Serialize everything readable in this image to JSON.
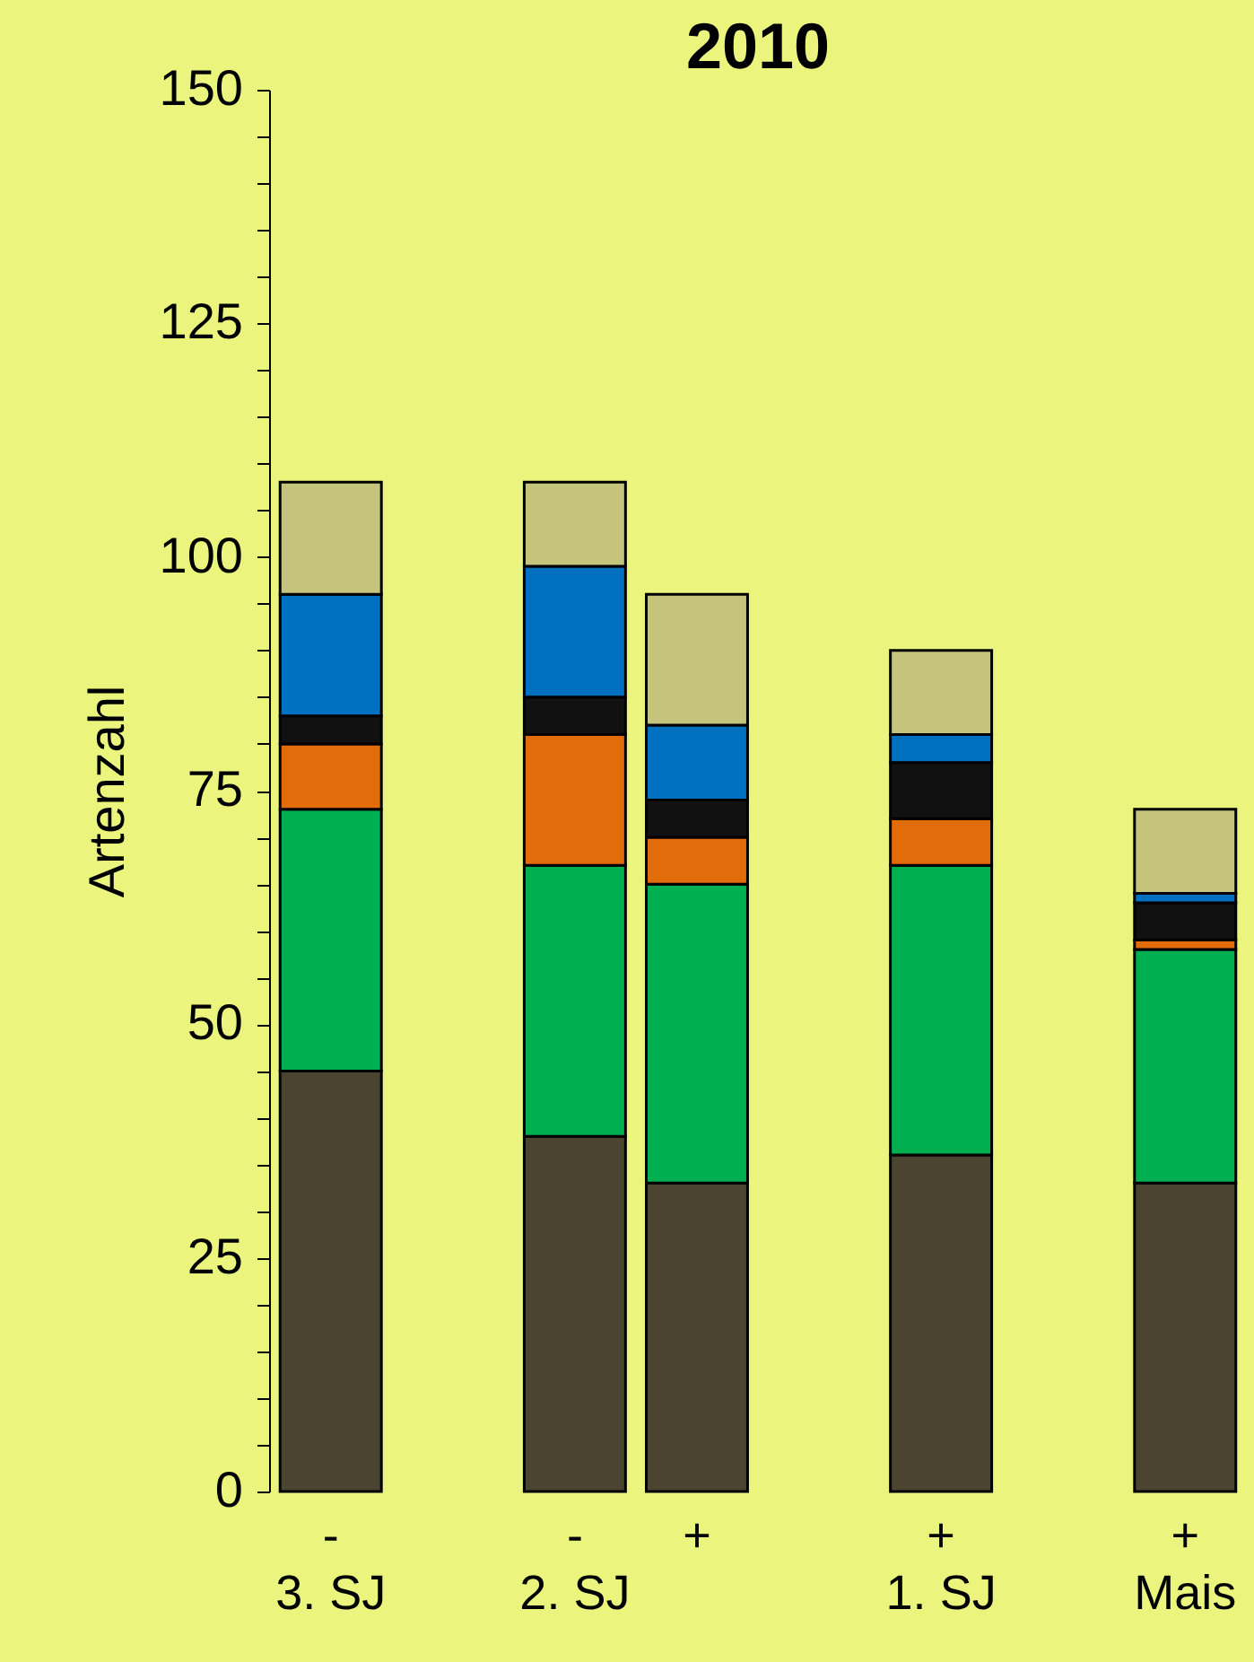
{
  "chart_data": {
    "type": "bar",
    "title": "2010",
    "ylabel": "Artenzahl",
    "stacked": true,
    "grid": false,
    "legend": false,
    "categories": [
      "-\n3. SJ",
      null,
      "-\n2. SJ",
      "+",
      null,
      "+\n1. SJ",
      null,
      "+\nMais"
    ],
    "series": [
      {
        "color": "#4a4430",
        "values": [
          45,
          null,
          38,
          33,
          null,
          36,
          null,
          33
        ]
      },
      {
        "color": "#00b050",
        "values": [
          28,
          null,
          29,
          32,
          null,
          31,
          null,
          25
        ]
      },
      {
        "color": "#e36c0a",
        "values": [
          7,
          null,
          14,
          5,
          null,
          5,
          null,
          1
        ]
      },
      {
        "color": "#111111",
        "values": [
          3,
          null,
          4,
          4,
          null,
          6,
          null,
          4
        ]
      },
      {
        "color": "#0070c0",
        "values": [
          13,
          null,
          14,
          8,
          null,
          3,
          null,
          1
        ]
      },
      {
        "color": "#c4c47c",
        "values": [
          12,
          null,
          9,
          14,
          null,
          9,
          null,
          9
        ]
      }
    ],
    "ylim": [
      0,
      150
    ],
    "yticks": [
      0,
      {
        "value": 5,
        "label": null
      },
      {
        "value": 10,
        "label": null
      },
      {
        "value": 15,
        "label": null
      },
      {
        "value": 20,
        "label": null
      },
      25,
      {
        "value": 30,
        "label": null
      },
      {
        "value": 35,
        "label": null
      },
      {
        "value": 40,
        "label": null
      },
      {
        "value": 45,
        "label": null
      },
      50,
      {
        "value": 55,
        "label": null
      },
      {
        "value": 60,
        "label": null
      },
      {
        "value": 65,
        "label": null
      },
      {
        "value": 70,
        "label": null
      },
      75,
      {
        "value": 80,
        "label": null
      },
      {
        "value": 85,
        "label": null
      },
      {
        "value": 90,
        "label": null
      },
      {
        "value": 95,
        "label": null
      },
      100,
      {
        "value": 105,
        "label": null
      },
      {
        "value": 110,
        "label": null
      },
      {
        "value": 115,
        "label": null
      },
      {
        "value": 120,
        "label": null
      },
      125,
      {
        "value": 130,
        "label": null
      },
      {
        "value": 135,
        "label": null
      },
      {
        "value": 140,
        "label": null
      },
      {
        "value": 145,
        "label": null
      },
      150
    ]
  }
}
